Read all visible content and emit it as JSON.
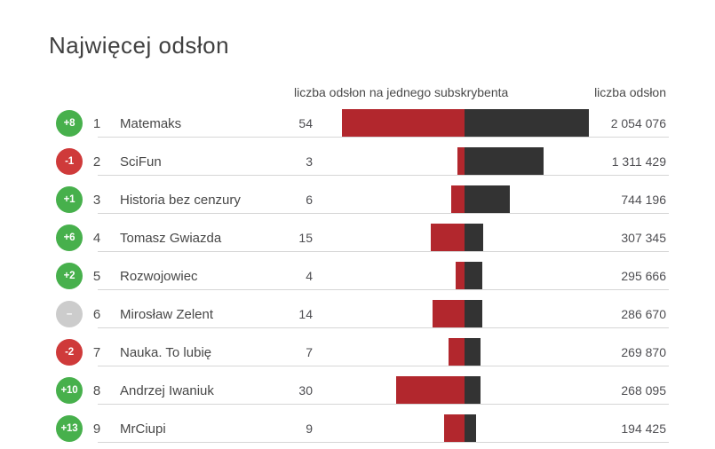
{
  "title": "Najwięcej odsłon",
  "headers": {
    "views_per_subscriber": "liczba odsłon na jednego subskrybenta",
    "total_views": "liczba odsłon"
  },
  "rows": [
    {
      "rank": "1",
      "change": "+8",
      "change_type": "up",
      "name": "Matemaks",
      "views_per_subscriber": "54",
      "total_views": "2 054 076"
    },
    {
      "rank": "2",
      "change": "-1",
      "change_type": "down",
      "name": "SciFun",
      "views_per_subscriber": "3",
      "total_views": "1 311 429"
    },
    {
      "rank": "3",
      "change": "+1",
      "change_type": "up",
      "name": "Historia bez cenzury",
      "views_per_subscriber": "6",
      "total_views": "744 196"
    },
    {
      "rank": "4",
      "change": "+6",
      "change_type": "up",
      "name": "Tomasz Gwiazda",
      "views_per_subscriber": "15",
      "total_views": "307 345"
    },
    {
      "rank": "5",
      "change": "+2",
      "change_type": "up",
      "name": "Rozwojowiec",
      "views_per_subscriber": "4",
      "total_views": "295 666"
    },
    {
      "rank": "6",
      "change": "–",
      "change_type": "neutral",
      "name": "Mirosław Zelent",
      "views_per_subscriber": "14",
      "total_views": "286 670"
    },
    {
      "rank": "7",
      "change": "-2",
      "change_type": "down",
      "name": "Nauka. To lubię",
      "views_per_subscriber": "7",
      "total_views": "269 870"
    },
    {
      "rank": "8",
      "change": "+10",
      "change_type": "up",
      "name": "Andrzej Iwaniuk",
      "views_per_subscriber": "30",
      "total_views": "268 095"
    },
    {
      "rank": "9",
      "change": "+13",
      "change_type": "up",
      "name": "MrCiupi",
      "views_per_subscriber": "9",
      "total_views": "194 425"
    }
  ],
  "colors": {
    "bar_red": "#b2272d",
    "bar_dark": "#333333",
    "badge_up": "#47b04c",
    "badge_down": "#cf3a3a",
    "badge_neutral": "#cccccc",
    "separator": "#d6d6d6"
  },
  "chart_data": {
    "type": "bar",
    "title": "Najwięcej odsłon",
    "categories": [
      "Matemaks",
      "SciFun",
      "Historia bez cenzury",
      "Tomasz Gwiazda",
      "Rozwojowiec",
      "Mirosław Zelent",
      "Nauka. To lubię",
      "Andrzej Iwaniuk",
      "MrCiupi"
    ],
    "rank_changes": [
      8,
      -1,
      1,
      6,
      2,
      0,
      -2,
      10,
      13
    ],
    "series": [
      {
        "name": "liczba odsłon na jednego subskrybenta",
        "values": [
          54,
          3,
          6,
          15,
          4,
          14,
          7,
          30,
          9
        ],
        "color": "#b2272d",
        "direction": "left"
      },
      {
        "name": "liczba odsłon",
        "values": [
          2054076,
          1311429,
          744196,
          307345,
          295666,
          286670,
          269870,
          268095,
          194425
        ],
        "color": "#333333",
        "direction": "right"
      }
    ],
    "orientation": "horizontal",
    "grid": false,
    "legend_position": "column-headers",
    "max_left_value": 54,
    "max_right_value": 2054076
  }
}
